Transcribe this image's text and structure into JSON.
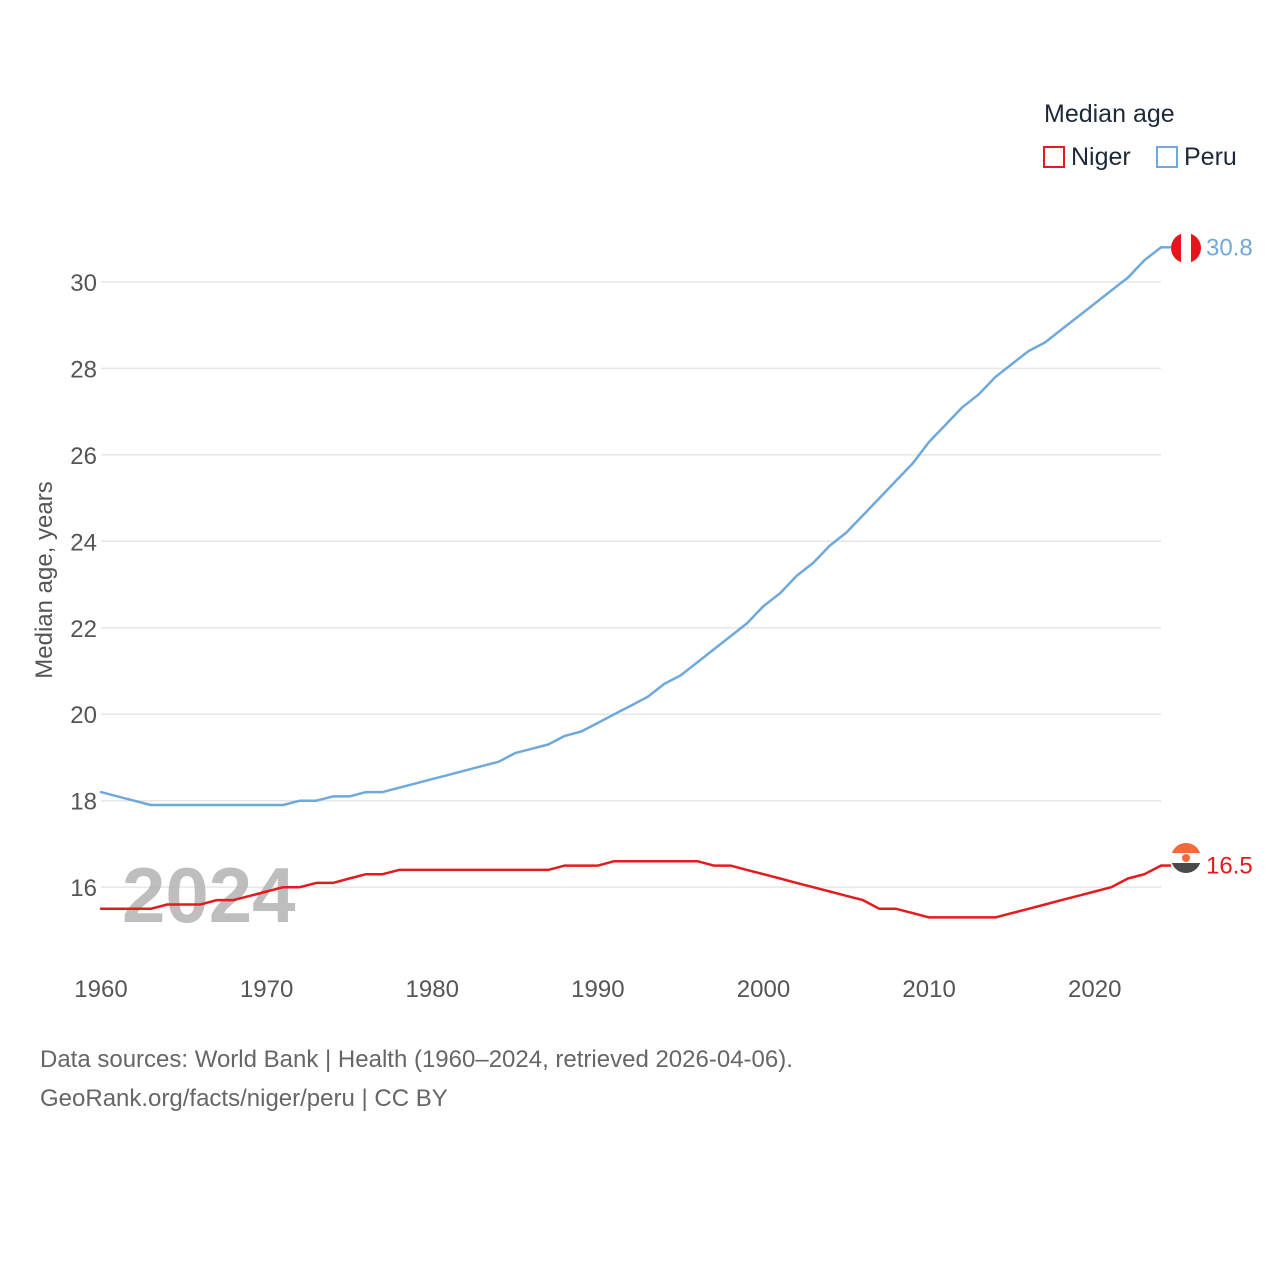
{
  "legend": {
    "title": "Median age",
    "items": [
      {
        "name": "Niger",
        "color": "#e41a1c"
      },
      {
        "name": "Peru",
        "color": "#6fa8dc"
      }
    ]
  },
  "footer": {
    "line1": "Data sources: World Bank | Health (1960–2024, retrieved 2026-04-06).",
    "line2": "GeoRank.org/facts/niger/peru | CC BY"
  },
  "chart_data": {
    "type": "line",
    "title": "Median age",
    "ylabel": "Median age, years",
    "xlabel": "",
    "xlim": [
      1960,
      2024
    ],
    "ylim": [
      14.2,
      31.2
    ],
    "x_ticks": [
      1960,
      1970,
      1980,
      1990,
      2000,
      2010,
      2020
    ],
    "y_ticks": [
      16,
      18,
      20,
      22,
      24,
      26,
      28,
      30
    ],
    "grid": true,
    "watermark": "2024",
    "x": [
      1960,
      1961,
      1962,
      1963,
      1964,
      1965,
      1966,
      1967,
      1968,
      1969,
      1970,
      1971,
      1972,
      1973,
      1974,
      1975,
      1976,
      1977,
      1978,
      1979,
      1980,
      1981,
      1982,
      1983,
      1984,
      1985,
      1986,
      1987,
      1988,
      1989,
      1990,
      1991,
      1992,
      1993,
      1994,
      1995,
      1996,
      1997,
      1998,
      1999,
      2000,
      2001,
      2002,
      2003,
      2004,
      2005,
      2006,
      2007,
      2008,
      2009,
      2010,
      2011,
      2012,
      2013,
      2014,
      2015,
      2016,
      2017,
      2018,
      2019,
      2020,
      2021,
      2022,
      2023,
      2024
    ],
    "series": [
      {
        "name": "Niger",
        "color": "#e41a1c",
        "end_label": "16.5",
        "values": [
          15.5,
          15.5,
          15.5,
          15.5,
          15.6,
          15.6,
          15.6,
          15.7,
          15.7,
          15.8,
          15.9,
          16.0,
          16.0,
          16.1,
          16.1,
          16.2,
          16.3,
          16.3,
          16.4,
          16.4,
          16.4,
          16.4,
          16.4,
          16.4,
          16.4,
          16.4,
          16.4,
          16.4,
          16.5,
          16.5,
          16.5,
          16.6,
          16.6,
          16.6,
          16.6,
          16.6,
          16.6,
          16.5,
          16.5,
          16.4,
          16.3,
          16.2,
          16.1,
          16.0,
          15.9,
          15.8,
          15.7,
          15.5,
          15.5,
          15.4,
          15.3,
          15.3,
          15.3,
          15.3,
          15.3,
          15.4,
          15.5,
          15.6,
          15.7,
          15.8,
          15.9,
          16.0,
          16.2,
          16.3,
          16.5
        ]
      },
      {
        "name": "Peru",
        "color": "#6fa8dc",
        "end_label": "30.8",
        "values": [
          18.2,
          18.1,
          18.0,
          17.9,
          17.9,
          17.9,
          17.9,
          17.9,
          17.9,
          17.9,
          17.9,
          17.9,
          18.0,
          18.0,
          18.1,
          18.1,
          18.2,
          18.2,
          18.3,
          18.4,
          18.5,
          18.6,
          18.7,
          18.8,
          18.9,
          19.1,
          19.2,
          19.3,
          19.5,
          19.6,
          19.8,
          20.0,
          20.2,
          20.4,
          20.7,
          20.9,
          21.2,
          21.5,
          21.8,
          22.1,
          22.5,
          22.8,
          23.2,
          23.5,
          23.9,
          24.2,
          24.6,
          25.0,
          25.4,
          25.8,
          26.3,
          26.7,
          27.1,
          27.4,
          27.8,
          28.1,
          28.4,
          28.6,
          28.9,
          29.2,
          29.5,
          29.8,
          30.1,
          30.5,
          30.8
        ]
      }
    ]
  }
}
